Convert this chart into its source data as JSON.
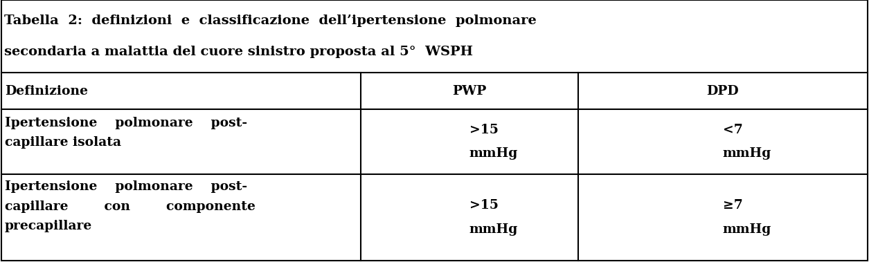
{
  "title_line1": "Tabella  2:  definizioni  e  classificazione  dell’ipertensione  polmonare",
  "title_line2": "secondaria a malattia del cuore sinistro proposta al 5°  WSPH",
  "header": [
    "Definizione",
    "PWP",
    "DPD"
  ],
  "row1_col1": [
    "Ipertensione    polmonare    post-",
    "capillare isolata"
  ],
  "row1_col2": [
    ">15",
    "mmHg"
  ],
  "row1_col3": [
    "<7",
    "mmHg"
  ],
  "row2_col1": [
    "Ipertensione    polmonare    post-",
    "capillare        con        componente",
    "precapillare"
  ],
  "row2_col2": [
    ">15",
    "mmHg"
  ],
  "row2_col3": [
    "≥7",
    "mmHg"
  ],
  "col_splits": [
    0.415,
    0.665
  ],
  "background_color": "#ffffff",
  "text_color": "#000000",
  "title_fontsize": 14.0,
  "cell_fontsize": 13.5,
  "line_width": 1.5,
  "fig_width": 12.55,
  "fig_height": 3.79,
  "dpi": 100
}
